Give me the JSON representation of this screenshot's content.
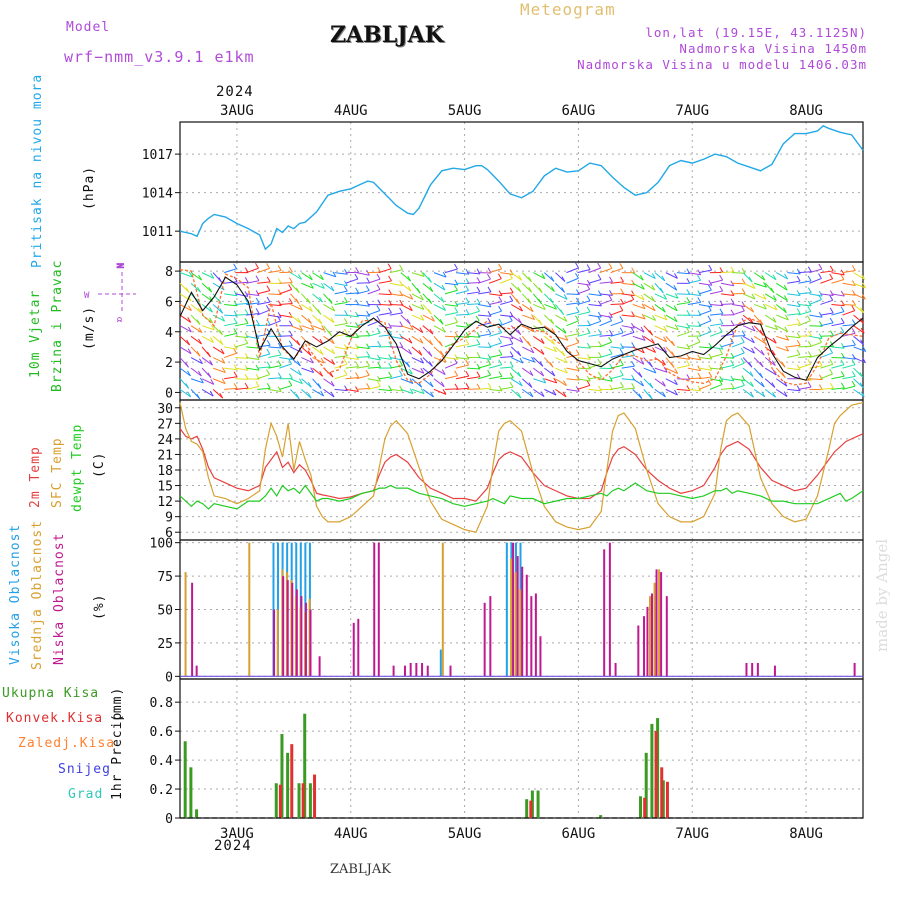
{
  "header": {
    "model_label": "Model",
    "model_name": "wrf−nmm_v3.9.1  e1km",
    "station": "ZABLJAK",
    "meteogram": "Meteogram",
    "lonlat": "lon,lat (19.15E, 43.1125N)",
    "elevation": "Nadmorska Visina 1450m",
    "model_elevation": "Nadmorska Visina u modelu 1406.03m",
    "footer": "ZABLJAK",
    "credit": "made by Angel"
  },
  "colors": {
    "pressure": "#22a8e8",
    "wind_label": "#22bb22",
    "violet": "#b04ad8",
    "t2m": "#e84040",
    "tsfc": "#d8a030",
    "dewpt": "#22cc22",
    "cloud_high": "#22a0e8",
    "cloud_mid": "#d8a030",
    "cloud_low": "#c01890",
    "precip_total": "#3a9a22",
    "precip_conv": "#e03030",
    "precip_frz": "#ff8030",
    "snow": "#4040e0",
    "grad": "#30c8b8"
  },
  "time_axis": {
    "year": "2024",
    "days": [
      "3AUG",
      "4AUG",
      "5AUG",
      "6AUG",
      "7AUG",
      "8AUG"
    ]
  },
  "chart_data": [
    {
      "type": "line",
      "title": "",
      "ylabel": "Pritisak na nivou mora",
      "units": "(hPa)",
      "yticks": [
        "1011",
        "1014",
        "1017"
      ],
      "ylim": [
        1008.6,
        1019.5
      ],
      "x": [
        2.5,
        2.6,
        2.65,
        2.7,
        2.75,
        2.8,
        2.9,
        3.0,
        3.1,
        3.2,
        3.25,
        3.3,
        3.35,
        3.4,
        3.45,
        3.5,
        3.55,
        3.6,
        3.7,
        3.8,
        3.9,
        4.0,
        4.1,
        4.15,
        4.2,
        4.3,
        4.4,
        4.5,
        4.55,
        4.6,
        4.7,
        4.8,
        4.9,
        5.0,
        5.1,
        5.15,
        5.2,
        5.3,
        5.4,
        5.5,
        5.6,
        5.7,
        5.8,
        5.9,
        6.0,
        6.1,
        6.2,
        6.3,
        6.4,
        6.5,
        6.6,
        6.7,
        6.8,
        6.9,
        7.0,
        7.1,
        7.2,
        7.3,
        7.4,
        7.5,
        7.6,
        7.7,
        7.8,
        7.9,
        8.0,
        8.1,
        8.15,
        8.2,
        8.3,
        8.4,
        8.5
      ],
      "series": [
        {
          "name": "Pritisak na nivou mora",
          "values": [
            1011.0,
            1010.8,
            1010.6,
            1011.6,
            1012.0,
            1012.3,
            1012.1,
            1011.6,
            1011.2,
            1010.7,
            1009.6,
            1010.0,
            1011.2,
            1010.9,
            1011.4,
            1011.2,
            1011.6,
            1011.7,
            1012.5,
            1013.8,
            1014.1,
            1014.3,
            1014.7,
            1014.9,
            1014.8,
            1013.9,
            1013.0,
            1012.4,
            1012.3,
            1012.8,
            1014.6,
            1015.7,
            1015.9,
            1015.8,
            1016.1,
            1016.1,
            1015.8,
            1014.9,
            1013.9,
            1013.6,
            1014.1,
            1015.3,
            1015.9,
            1015.6,
            1015.7,
            1016.3,
            1016.1,
            1015.2,
            1014.4,
            1013.8,
            1014.0,
            1014.8,
            1016.1,
            1016.5,
            1016.3,
            1016.6,
            1017.0,
            1016.8,
            1016.3,
            1016.0,
            1015.7,
            1016.2,
            1017.8,
            1018.6,
            1018.6,
            1018.8,
            1019.2,
            1019.0,
            1018.7,
            1018.5,
            1017.3
          ]
        }
      ]
    },
    {
      "type": "line",
      "title": "",
      "ylabel": "10m Vjetar Brzina i Pravac",
      "units": "(m/s)",
      "compass": {
        "n": "N",
        "e": "E",
        "w": "W",
        "s": "α"
      },
      "yticks": [
        "0",
        "2",
        "4",
        "6",
        "8"
      ],
      "ylim": [
        -0.5,
        8.6
      ],
      "x": [
        2.5,
        2.6,
        2.7,
        2.8,
        2.9,
        3.0,
        3.1,
        3.2,
        3.3,
        3.4,
        3.5,
        3.6,
        3.7,
        3.8,
        3.9,
        4.0,
        4.1,
        4.2,
        4.3,
        4.4,
        4.5,
        4.6,
        4.7,
        4.8,
        4.9,
        5.0,
        5.1,
        5.2,
        5.3,
        5.4,
        5.5,
        5.6,
        5.7,
        5.8,
        5.9,
        6.0,
        6.1,
        6.2,
        6.3,
        6.4,
        6.5,
        6.6,
        6.7,
        6.8,
        6.9,
        7.0,
        7.1,
        7.2,
        7.3,
        7.4,
        7.5,
        7.6,
        7.7,
        7.8,
        7.9,
        8.0,
        8.1,
        8.2,
        8.3,
        8.4,
        8.5
      ],
      "series": [
        {
          "name": "wind speed",
          "values": [
            5.0,
            6.6,
            5.4,
            6.3,
            7.6,
            7.1,
            6.0,
            2.8,
            4.2,
            3.0,
            2.2,
            3.4,
            3.0,
            3.4,
            4.0,
            3.7,
            4.4,
            4.9,
            4.3,
            3.2,
            1.2,
            0.9,
            1.4,
            2.1,
            3.1,
            4.1,
            4.7,
            4.3,
            4.5,
            3.8,
            4.5,
            4.2,
            4.3,
            3.8,
            2.7,
            2.1,
            1.9,
            1.7,
            2.2,
            2.5,
            2.8,
            3.0,
            3.2,
            2.3,
            2.4,
            2.7,
            2.5,
            3.1,
            3.8,
            4.4,
            4.6,
            4.5,
            2.6,
            1.4,
            1.0,
            0.8,
            2.3,
            3.0,
            3.6,
            4.3,
            4.9
          ]
        },
        {
          "name": "wind gust",
          "values": [
            8.1,
            8.0,
            5.1,
            4.4,
            7.8,
            7.5,
            6.9,
            2.3,
            5.9,
            2.9,
            2.2,
            3.2,
            2.2,
            1.3,
            1.5,
            3.5,
            4.7,
            4.8,
            4.6,
            2.1,
            0.8,
            0.6,
            1.2,
            2.3,
            3.2,
            3.6,
            4.2,
            4.7,
            4.3,
            4.2,
            4.4,
            4.1,
            4.0,
            3.4,
            2.9,
            2.0,
            1.2,
            0.8,
            1.5,
            2.5,
            2.4,
            2.1,
            2.2,
            1.3,
            0.9,
            0.7,
            0.6,
            0.9,
            2.4,
            4.5,
            4.9,
            4.6,
            1.6,
            0.7,
            0.5,
            0.6,
            1.8,
            3.6,
            3.9,
            3.8,
            3.7
          ]
        }
      ]
    },
    {
      "type": "line",
      "title": "",
      "ylabel": "2m Temp",
      "ylabel2": "SFC Temp",
      "ylabel3": "dewpt Temp",
      "units": "(C)",
      "yticks": [
        "6",
        "9",
        "12",
        "15",
        "18",
        "21",
        "24",
        "27",
        "30"
      ],
      "ylim": [
        4.5,
        31.5
      ],
      "x": [
        2.5,
        2.55,
        2.6,
        2.65,
        2.7,
        2.75,
        2.8,
        2.9,
        3.0,
        3.1,
        3.2,
        3.25,
        3.3,
        3.35,
        3.4,
        3.45,
        3.5,
        3.55,
        3.6,
        3.65,
        3.7,
        3.75,
        3.8,
        3.9,
        4.0,
        4.1,
        4.2,
        4.25,
        4.3,
        4.35,
        4.4,
        4.5,
        4.6,
        4.7,
        4.8,
        4.9,
        5.0,
        5.1,
        5.2,
        5.25,
        5.3,
        5.35,
        5.4,
        5.5,
        5.6,
        5.7,
        5.8,
        5.9,
        6.0,
        6.1,
        6.2,
        6.25,
        6.3,
        6.35,
        6.4,
        6.5,
        6.6,
        6.7,
        6.8,
        6.9,
        7.0,
        7.1,
        7.2,
        7.25,
        7.3,
        7.35,
        7.4,
        7.5,
        7.6,
        7.7,
        7.8,
        7.9,
        8.0,
        8.1,
        8.2,
        8.25,
        8.3,
        8.35,
        8.4,
        8.5
      ],
      "series": [
        {
          "name": "2m Temp",
          "values": [
            26.0,
            24.5,
            24.0,
            24.5,
            22.0,
            18.5,
            16.5,
            15.5,
            14.5,
            14.0,
            15.0,
            18.5,
            20.0,
            21.5,
            18.5,
            19.5,
            17.5,
            19.0,
            18.0,
            16.0,
            13.5,
            13.2,
            13.0,
            12.5,
            12.8,
            13.5,
            14.0,
            17.0,
            19.5,
            20.5,
            21.0,
            19.5,
            16.5,
            14.5,
            13.5,
            12.5,
            12.5,
            12.0,
            14.5,
            17.5,
            20.0,
            21.0,
            21.5,
            20.5,
            17.5,
            15.0,
            14.0,
            13.0,
            12.5,
            12.5,
            14.0,
            17.5,
            20.5,
            22.0,
            22.5,
            21.0,
            18.0,
            16.0,
            14.5,
            13.5,
            14.0,
            15.0,
            18.5,
            21.0,
            22.5,
            23.0,
            23.5,
            22.0,
            18.5,
            16.0,
            15.0,
            14.0,
            14.5,
            17.0,
            20.0,
            21.5,
            22.5,
            23.5,
            24.0,
            25.0
          ]
        },
        {
          "name": "SFC Temp",
          "values": [
            31.0,
            26.0,
            23.5,
            23.0,
            21.5,
            16.5,
            13.0,
            12.5,
            11.5,
            12.5,
            14.0,
            22.0,
            27.0,
            24.5,
            20.5,
            27.0,
            18.0,
            23.5,
            20.0,
            17.0,
            11.0,
            9.0,
            8.0,
            8.0,
            9.0,
            11.0,
            13.0,
            18.5,
            24.0,
            26.5,
            27.5,
            25.0,
            18.5,
            12.0,
            8.5,
            7.5,
            6.5,
            6.0,
            11.0,
            19.0,
            25.5,
            27.0,
            27.5,
            25.5,
            17.5,
            11.0,
            8.0,
            7.0,
            6.5,
            7.0,
            10.0,
            18.0,
            25.5,
            28.5,
            29.0,
            26.0,
            18.0,
            11.5,
            9.0,
            8.0,
            8.0,
            9.0,
            13.5,
            22.0,
            27.5,
            28.5,
            29.0,
            26.5,
            16.5,
            11.5,
            9.0,
            8.0,
            8.5,
            13.0,
            22.0,
            27.0,
            28.5,
            29.5,
            30.5,
            31.0
          ]
        },
        {
          "name": "dewpt Temp",
          "values": [
            13.0,
            12.0,
            11.0,
            12.0,
            11.5,
            10.5,
            11.5,
            11.0,
            10.5,
            12.0,
            12.0,
            13.0,
            14.5,
            13.0,
            15.0,
            14.0,
            14.5,
            13.5,
            15.0,
            13.5,
            12.0,
            12.5,
            12.5,
            12.0,
            12.5,
            13.5,
            14.0,
            14.5,
            14.5,
            15.0,
            14.5,
            14.5,
            13.5,
            13.0,
            12.5,
            11.5,
            11.0,
            11.5,
            12.0,
            12.5,
            12.0,
            11.5,
            13.0,
            12.5,
            12.5,
            11.5,
            12.0,
            12.5,
            12.5,
            13.0,
            13.5,
            13.0,
            14.0,
            14.5,
            14.0,
            15.5,
            14.0,
            13.5,
            13.5,
            13.0,
            12.5,
            13.0,
            14.0,
            14.0,
            14.5,
            13.5,
            14.0,
            13.5,
            13.0,
            12.0,
            12.0,
            11.5,
            11.5,
            11.5,
            12.5,
            13.0,
            13.5,
            12.0,
            12.5,
            14.0
          ]
        }
      ]
    },
    {
      "type": "bar",
      "title": "",
      "ylabel": "Visoka Oblacnost",
      "ylabel2": "Srednja Oblacnost",
      "ylabel3": "Niska Oblacnost",
      "units": "(%)",
      "yticks": [
        "0",
        "25",
        "50",
        "75",
        "100"
      ],
      "ylim": [
        -2,
        102
      ],
      "series": [
        {
          "name": "Visoka Oblacnost",
          "x": [
            3.33,
            3.37,
            3.41,
            3.45,
            3.49,
            3.53,
            3.57,
            3.61,
            3.65,
            4.8,
            5.38,
            5.42,
            5.46,
            5.5
          ],
          "values": [
            100,
            100,
            100,
            100,
            100,
            100,
            100,
            100,
            100,
            20,
            100,
            100,
            100,
            100
          ]
        },
        {
          "name": "Srednja Oblacnost",
          "x": [
            2.54,
            3.1,
            3.35,
            3.39,
            3.43,
            3.47,
            3.51,
            3.55,
            3.59,
            3.63,
            4.8,
            5.4,
            5.44,
            5.48,
            6.62,
            6.66,
            6.7
          ],
          "values": [
            78,
            100,
            50,
            80,
            78,
            72,
            60,
            52,
            48,
            58,
            100,
            88,
            78,
            65,
            60,
            70,
            80
          ]
        },
        {
          "name": "Niska Oblacnost",
          "x": [
            2.58,
            2.62,
            3.3,
            3.38,
            3.42,
            3.46,
            3.5,
            3.54,
            3.58,
            3.62,
            3.7,
            4.0,
            4.04,
            4.18,
            4.22,
            4.35,
            4.45,
            4.5,
            4.55,
            4.6,
            4.65,
            4.85,
            5.15,
            5.2,
            5.4,
            5.44,
            5.48,
            5.52,
            5.56,
            5.6,
            5.64,
            6.2,
            6.25,
            6.3,
            6.5,
            6.55,
            6.58,
            6.62,
            6.66,
            6.7,
            6.75,
            7.45,
            7.5,
            7.55,
            7.7,
            8.4
          ],
          "values": [
            70,
            8,
            50,
            75,
            72,
            70,
            65,
            60,
            55,
            50,
            15,
            40,
            43,
            100,
            100,
            8,
            8,
            10,
            10,
            10,
            8,
            8,
            55,
            60,
            100,
            90,
            82,
            76,
            60,
            62,
            30,
            95,
            100,
            10,
            38,
            45,
            52,
            62,
            80,
            78,
            60,
            10,
            10,
            10,
            8,
            10
          ]
        }
      ]
    },
    {
      "type": "bar",
      "title": "",
      "ylabel": "1hr Precip",
      "units": "(mm)",
      "legend": [
        "Ukupna Kisa",
        "Konvek.Kisa",
        "Zaledj.Kisa",
        "Snijeg",
        "Grad"
      ],
      "yticks": [
        "0",
        "0.2",
        "0.4",
        "0.6",
        "0.8"
      ],
      "ylim": [
        0,
        0.96
      ],
      "series": [
        {
          "name": "Ukupna Kisa",
          "x": [
            2.55,
            2.6,
            2.65,
            3.35,
            3.4,
            3.45,
            3.55,
            3.6,
            3.65,
            5.55,
            5.6,
            5.65,
            6.2,
            6.55,
            6.6,
            6.65,
            6.7,
            6.75
          ],
          "values": [
            0.53,
            0.35,
            0.06,
            0.24,
            0.58,
            0.45,
            0.24,
            0.72,
            0.24,
            0.13,
            0.19,
            0.19,
            0.02,
            0.15,
            0.45,
            0.65,
            0.69,
            0.26
          ]
        },
        {
          "name": "Konvek.Kisa",
          "x": [
            3.36,
            3.46,
            3.56,
            3.66,
            5.56,
            6.56,
            6.66,
            6.71,
            6.76
          ],
          "values": [
            0.23,
            0.51,
            0.24,
            0.3,
            0.12,
            0.14,
            0.6,
            0.35,
            0.25
          ]
        }
      ]
    }
  ]
}
